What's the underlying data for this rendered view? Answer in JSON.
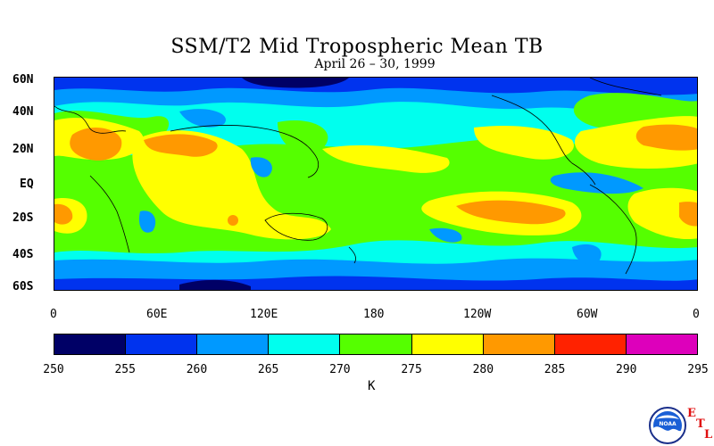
{
  "title": "SSM/T2 Mid Tropospheric Mean TB",
  "subtitle": "April 26 – 30, 1999",
  "lat_labels": [
    "60N",
    "40N",
    "20N",
    "EQ",
    "20S",
    "40S",
    "60S"
  ],
  "lon_labels": [
    "0",
    "60E",
    "120E",
    "180",
    "120W",
    "60W",
    "0"
  ],
  "colorbar": {
    "ticks": [
      "250",
      "255",
      "260",
      "265",
      "270",
      "275",
      "280",
      "285",
      "290",
      "295"
    ],
    "unit": "K",
    "colors": [
      "#000066",
      "#0033ee",
      "#0099ff",
      "#00ffee",
      "#55ff00",
      "#ffff00",
      "#ff9900",
      "#ff2200",
      "#dd00bb"
    ]
  },
  "logo": {
    "agency": "NOAA",
    "lab": [
      "E",
      "T",
      "L"
    ]
  },
  "chart_data": {
    "type": "heatmap",
    "title": "SSM/T2 Mid Tropospheric Mean TB",
    "subtitle": "April 26 – 30, 1999",
    "variable_unit": "K",
    "value_range": [
      250,
      295
    ],
    "xlim": [
      "0",
      "0"
    ],
    "ylim": [
      "60S",
      "60N"
    ]
  }
}
